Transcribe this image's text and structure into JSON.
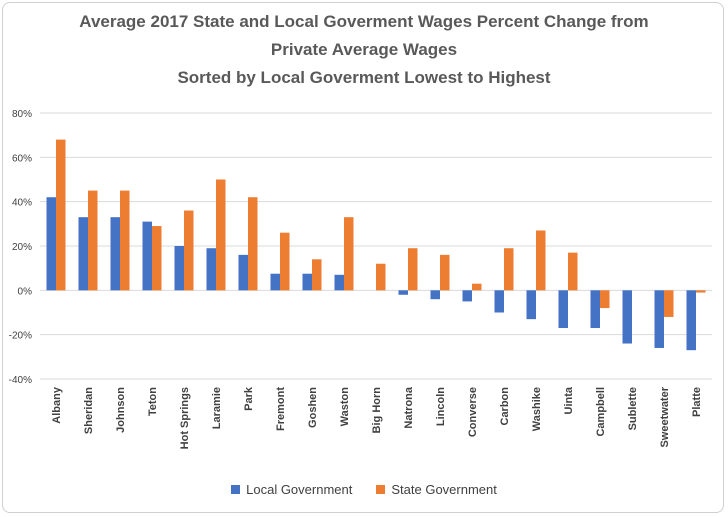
{
  "chart_data": {
    "type": "bar",
    "title_lines": [
      "Average 2017 State and Local Goverment Wages Percent Change from",
      "Private Average Wages",
      "Sorted by Local Goverment Lowest to Highest"
    ],
    "categories": [
      "Albany",
      "Sheridan",
      "Johnson",
      "Teton",
      "Hot Springs",
      "Laramie",
      "Park",
      "Fremont",
      "Goshen",
      "Waston",
      "Big Horn",
      "Natrona",
      "Lincoln",
      "Converse",
      "Carbon",
      "Washike",
      "Uinta",
      "Campbell",
      "Sublette",
      "Sweetwater",
      "Platte"
    ],
    "series": [
      {
        "name": "Local Government",
        "color": "#4472C4",
        "values": [
          42,
          33,
          33,
          31,
          20,
          19,
          16,
          7.5,
          7.5,
          7,
          0,
          -2,
          -4,
          -5,
          -10,
          -13,
          -17,
          -17,
          -24,
          -26,
          -27
        ]
      },
      {
        "name": "State Government",
        "color": "#ED7D31",
        "values": [
          68,
          45,
          45,
          29,
          36,
          50,
          42,
          26,
          14,
          33,
          12,
          19,
          16,
          3,
          19,
          27,
          17,
          -8,
          0,
          -12,
          -1
        ]
      }
    ],
    "ylim": [
      -40,
      80
    ],
    "yticks": [
      "-40%",
      "-20%",
      "0%",
      "20%",
      "40%",
      "60%",
      "80%"
    ],
    "ytick_values": [
      -40,
      -20,
      0,
      20,
      40,
      60,
      80
    ],
    "grid": true,
    "legend_position": "bottom"
  }
}
